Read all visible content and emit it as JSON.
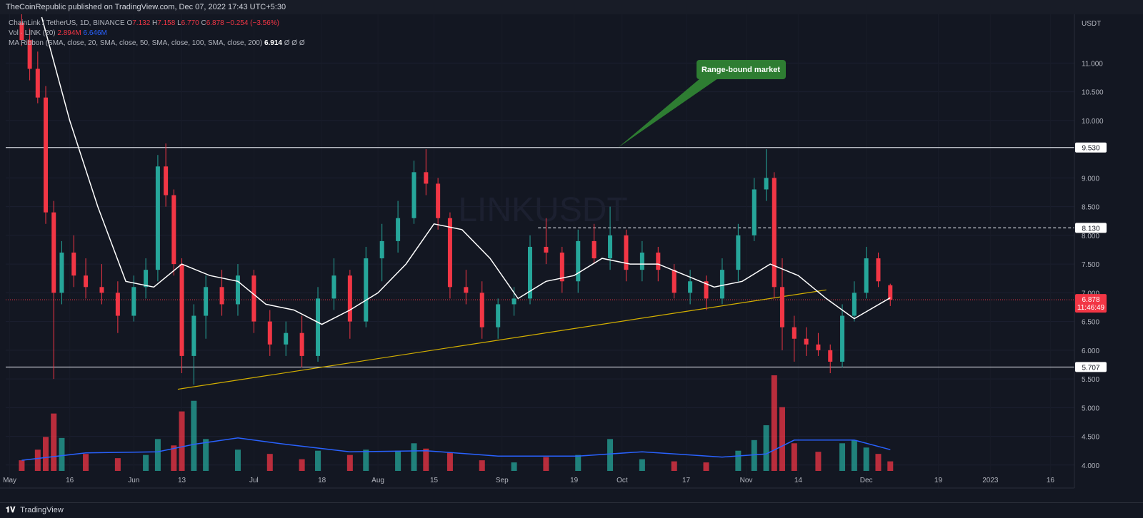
{
  "header": {
    "publisher": "TheCoinRepublic published on TradingView.com, Dec 07, 2022 17:43 UTC+5:30"
  },
  "legend": {
    "symbol": "ChainLink / TetherUS, 1D, BINANCE",
    "o_label": "O",
    "o_value": "7.132",
    "h_label": "H",
    "h_value": "7.158",
    "l_label": "L",
    "l_value": "6.770",
    "c_label": "C",
    "c_value": "6.878",
    "change": "−0.254 (−3.56%)",
    "vol_label": "Vol · LINK (20)",
    "vol_value1": "2.894M",
    "vol_value2": "6.646M",
    "ma_label": "MA Ribbon (SMA, close, 20, SMA, close, 50, SMA, close, 100, SMA, close, 200)",
    "ma_value": "6.914",
    "ma_nulls": "Ø  Ø  Ø"
  },
  "footer": {
    "logo_glyph": "𝟏𝐕",
    "brand": "TradingView"
  },
  "colors": {
    "up": "#26a69a",
    "down": "#f23645",
    "background": "#131722",
    "ma": "#ffffff",
    "vol_ma": "#2962ff",
    "trendline": "#d4b000",
    "annotation": "#2e7d32",
    "price_badge": "#f23645"
  },
  "chart_data": {
    "type": "candlestick",
    "symbol": "LINKUSDT",
    "currency_label": "USDT",
    "x_ticks": [
      "May",
      "16",
      "Jun",
      "13",
      "Jul",
      "18",
      "Aug",
      "15",
      "Sep",
      "19",
      "Oct",
      "17",
      "Nov",
      "14",
      "Dec",
      "19",
      "2023",
      "16"
    ],
    "y_ticks": [
      "11.000",
      "10.500",
      "10.000",
      "9.000",
      "8.500",
      "8.000",
      "7.500",
      "7.000",
      "6.500",
      "6.000",
      "5.500",
      "5.000",
      "4.500",
      "4.000"
    ],
    "horizontal_levels": [
      {
        "label": "9.530",
        "value": 9.53,
        "style": "solid"
      },
      {
        "label": "8.130",
        "value": 8.13,
        "style": "dashed"
      },
      {
        "label": "5.707",
        "value": 5.707,
        "style": "solid"
      }
    ],
    "last_price": {
      "label": "6.878",
      "countdown": "11:46:49",
      "value": 6.878
    },
    "annotation": {
      "text": "Range-bound market"
    },
    "trendline": {
      "start_date": "2022-06-12",
      "start_value": 5.32,
      "end_date": "2022-11-21",
      "end_value": 7.05
    },
    "ma20": [
      [
        "2022-05-09",
        11.8
      ],
      [
        "2022-05-16",
        10.0
      ],
      [
        "2022-05-23",
        8.5
      ],
      [
        "2022-05-30",
        7.2
      ],
      [
        "2022-06-06",
        7.1
      ],
      [
        "2022-06-13",
        7.5
      ],
      [
        "2022-06-20",
        7.3
      ],
      [
        "2022-06-27",
        7.2
      ],
      [
        "2022-07-04",
        6.8
      ],
      [
        "2022-07-11",
        6.7
      ],
      [
        "2022-07-18",
        6.45
      ],
      [
        "2022-07-25",
        6.7
      ],
      [
        "2022-08-01",
        7.0
      ],
      [
        "2022-08-08",
        7.5
      ],
      [
        "2022-08-15",
        8.2
      ],
      [
        "2022-08-22",
        8.1
      ],
      [
        "2022-08-29",
        7.6
      ],
      [
        "2022-09-05",
        6.9
      ],
      [
        "2022-09-12",
        7.2
      ],
      [
        "2022-09-19",
        7.3
      ],
      [
        "2022-09-26",
        7.6
      ],
      [
        "2022-10-03",
        7.5
      ],
      [
        "2022-10-10",
        7.5
      ],
      [
        "2022-10-17",
        7.3
      ],
      [
        "2022-10-24",
        7.1
      ],
      [
        "2022-10-31",
        7.2
      ],
      [
        "2022-11-07",
        7.5
      ],
      [
        "2022-11-14",
        7.3
      ],
      [
        "2022-11-21",
        6.9
      ],
      [
        "2022-11-28",
        6.55
      ],
      [
        "2022-12-07",
        6.914
      ]
    ],
    "candles": [
      [
        "2022-05-04",
        11.7,
        12.2,
        11.3,
        11.4
      ],
      [
        "2022-05-06",
        11.4,
        11.6,
        10.7,
        10.9
      ],
      [
        "2022-05-08",
        10.9,
        11.2,
        10.3,
        10.4
      ],
      [
        "2022-05-10",
        10.4,
        10.6,
        8.2,
        8.4
      ],
      [
        "2022-05-12",
        8.4,
        8.6,
        5.5,
        7.0
      ],
      [
        "2022-05-14",
        7.0,
        7.9,
        6.8,
        7.7
      ],
      [
        "2022-05-17",
        7.7,
        8.0,
        7.1,
        7.3
      ],
      [
        "2022-05-20",
        7.3,
        7.6,
        6.9,
        7.1
      ],
      [
        "2022-05-24",
        7.1,
        7.5,
        6.8,
        7.0
      ],
      [
        "2022-05-28",
        7.0,
        7.2,
        6.3,
        6.6
      ],
      [
        "2022-06-01",
        6.6,
        7.3,
        6.5,
        7.1
      ],
      [
        "2022-06-04",
        7.1,
        7.6,
        6.9,
        7.4
      ],
      [
        "2022-06-07",
        7.4,
        9.4,
        7.2,
        9.2
      ],
      [
        "2022-06-09",
        9.2,
        9.6,
        8.5,
        8.7
      ],
      [
        "2022-06-11",
        8.7,
        8.8,
        7.3,
        7.5
      ],
      [
        "2022-06-13",
        7.5,
        7.6,
        5.6,
        5.9
      ],
      [
        "2022-06-16",
        5.9,
        6.8,
        5.4,
        6.6
      ],
      [
        "2022-06-19",
        6.6,
        7.3,
        6.2,
        7.1
      ],
      [
        "2022-06-23",
        7.1,
        7.4,
        6.6,
        6.8
      ],
      [
        "2022-06-27",
        6.8,
        7.5,
        6.6,
        7.3
      ],
      [
        "2022-07-01",
        7.3,
        7.4,
        6.3,
        6.5
      ],
      [
        "2022-07-05",
        6.5,
        6.7,
        5.9,
        6.1
      ],
      [
        "2022-07-09",
        6.1,
        6.5,
        5.9,
        6.3
      ],
      [
        "2022-07-13",
        6.3,
        6.6,
        5.7,
        5.9
      ],
      [
        "2022-07-17",
        5.9,
        7.1,
        5.8,
        6.9
      ],
      [
        "2022-07-21",
        6.9,
        7.6,
        6.7,
        7.3
      ],
      [
        "2022-07-25",
        7.3,
        7.4,
        6.2,
        6.5
      ],
      [
        "2022-07-29",
        6.5,
        7.8,
        6.4,
        7.6
      ],
      [
        "2022-08-02",
        7.6,
        8.2,
        7.2,
        7.9
      ],
      [
        "2022-08-06",
        7.9,
        8.6,
        7.7,
        8.3
      ],
      [
        "2022-08-10",
        8.3,
        9.3,
        8.2,
        9.1
      ],
      [
        "2022-08-13",
        9.1,
        9.5,
        8.7,
        8.9
      ],
      [
        "2022-08-16",
        8.9,
        9.0,
        8.1,
        8.3
      ],
      [
        "2022-08-19",
        8.3,
        8.4,
        6.9,
        7.1
      ],
      [
        "2022-08-23",
        7.1,
        7.4,
        6.8,
        7.0
      ],
      [
        "2022-08-27",
        7.0,
        7.2,
        6.2,
        6.4
      ],
      [
        "2022-08-31",
        6.4,
        6.9,
        6.2,
        6.8
      ],
      [
        "2022-09-04",
        6.8,
        7.1,
        6.6,
        6.9
      ],
      [
        "2022-09-08",
        6.9,
        8.0,
        6.8,
        7.8
      ],
      [
        "2022-09-12",
        7.8,
        8.3,
        7.5,
        7.7
      ],
      [
        "2022-09-16",
        7.7,
        7.8,
        7.0,
        7.2
      ],
      [
        "2022-09-20",
        7.2,
        8.1,
        7.0,
        7.9
      ],
      [
        "2022-09-24",
        7.9,
        8.2,
        7.5,
        7.6
      ],
      [
        "2022-09-28",
        7.6,
        8.5,
        7.4,
        8.0
      ],
      [
        "2022-10-02",
        8.0,
        8.1,
        7.2,
        7.4
      ],
      [
        "2022-10-06",
        7.4,
        7.9,
        7.2,
        7.7
      ],
      [
        "2022-10-10",
        7.7,
        7.8,
        7.2,
        7.4
      ],
      [
        "2022-10-14",
        7.4,
        7.5,
        6.9,
        7.0
      ],
      [
        "2022-10-18",
        7.0,
        7.4,
        6.8,
        7.2
      ],
      [
        "2022-10-22",
        7.2,
        7.3,
        6.7,
        6.9
      ],
      [
        "2022-10-26",
        6.9,
        7.6,
        6.8,
        7.4
      ],
      [
        "2022-10-30",
        7.4,
        8.2,
        7.2,
        8.0
      ],
      [
        "2022-11-03",
        8.0,
        9.0,
        7.9,
        8.8
      ],
      [
        "2022-11-06",
        8.8,
        9.5,
        8.6,
        9.0
      ],
      [
        "2022-11-08",
        9.0,
        9.1,
        6.9,
        7.1
      ],
      [
        "2022-11-10",
        7.1,
        7.6,
        6.0,
        6.4
      ],
      [
        "2022-11-13",
        6.4,
        6.6,
        5.8,
        6.2
      ],
      [
        "2022-11-16",
        6.2,
        6.4,
        5.9,
        6.1
      ],
      [
        "2022-11-19",
        6.1,
        6.3,
        5.9,
        6.0
      ],
      [
        "2022-11-22",
        6.0,
        6.1,
        5.6,
        5.8
      ],
      [
        "2022-11-25",
        5.8,
        6.8,
        5.7,
        6.6
      ],
      [
        "2022-11-28",
        6.6,
        7.2,
        6.5,
        7.0
      ],
      [
        "2022-12-01",
        7.0,
        7.8,
        6.9,
        7.6
      ],
      [
        "2022-12-04",
        7.6,
        7.7,
        7.1,
        7.2
      ],
      [
        "2022-12-07",
        7.132,
        7.158,
        6.77,
        6.878
      ]
    ],
    "volume": [
      [
        "2022-05-04",
        1.0
      ],
      [
        "2022-05-08",
        2.0
      ],
      [
        "2022-05-10",
        3.2
      ],
      [
        "2022-05-12",
        5.4
      ],
      [
        "2022-05-14",
        3.1
      ],
      [
        "2022-05-20",
        1.6
      ],
      [
        "2022-05-28",
        1.2
      ],
      [
        "2022-06-04",
        1.5
      ],
      [
        "2022-06-07",
        3.0
      ],
      [
        "2022-06-11",
        2.4
      ],
      [
        "2022-06-13",
        5.6
      ],
      [
        "2022-06-16",
        6.6
      ],
      [
        "2022-06-19",
        3.0
      ],
      [
        "2022-06-27",
        2.0
      ],
      [
        "2022-07-05",
        1.6
      ],
      [
        "2022-07-13",
        1.1
      ],
      [
        "2022-07-17",
        1.9
      ],
      [
        "2022-07-25",
        1.5
      ],
      [
        "2022-07-29",
        2.0
      ],
      [
        "2022-08-06",
        1.9
      ],
      [
        "2022-08-10",
        2.6
      ],
      [
        "2022-08-13",
        2.1
      ],
      [
        "2022-08-19",
        1.7
      ],
      [
        "2022-08-27",
        1.0
      ],
      [
        "2022-09-04",
        0.8
      ],
      [
        "2022-09-12",
        1.3
      ],
      [
        "2022-09-20",
        1.5
      ],
      [
        "2022-09-28",
        3.0
      ],
      [
        "2022-10-06",
        1.1
      ],
      [
        "2022-10-14",
        0.9
      ],
      [
        "2022-10-22",
        0.8
      ],
      [
        "2022-10-30",
        1.9
      ],
      [
        "2022-11-03",
        2.9
      ],
      [
        "2022-11-06",
        4.3
      ],
      [
        "2022-11-08",
        9.0
      ],
      [
        "2022-11-10",
        6.0
      ],
      [
        "2022-11-13",
        2.6
      ],
      [
        "2022-11-19",
        1.8
      ],
      [
        "2022-11-25",
        2.6
      ],
      [
        "2022-11-28",
        2.9
      ],
      [
        "2022-12-01",
        2.2
      ],
      [
        "2022-12-04",
        1.6
      ],
      [
        "2022-12-07",
        0.9
      ]
    ],
    "volume_ma": [
      [
        "2022-05-04",
        1.0
      ],
      [
        "2022-05-20",
        1.7
      ],
      [
        "2022-06-07",
        1.8
      ],
      [
        "2022-06-16",
        2.5
      ],
      [
        "2022-06-27",
        3.1
      ],
      [
        "2022-07-09",
        2.5
      ],
      [
        "2022-07-25",
        1.8
      ],
      [
        "2022-08-13",
        1.9
      ],
      [
        "2022-08-31",
        1.4
      ],
      [
        "2022-09-20",
        1.4
      ],
      [
        "2022-10-06",
        1.8
      ],
      [
        "2022-10-26",
        1.3
      ],
      [
        "2022-11-06",
        1.6
      ],
      [
        "2022-11-13",
        2.9
      ],
      [
        "2022-11-28",
        2.9
      ],
      [
        "2022-12-07",
        2.0
      ]
    ],
    "date_range": [
      "2022-04-30",
      "2023-01-22"
    ],
    "price_range": [
      3.6,
      11.85
    ],
    "volume_max": 9.0
  }
}
